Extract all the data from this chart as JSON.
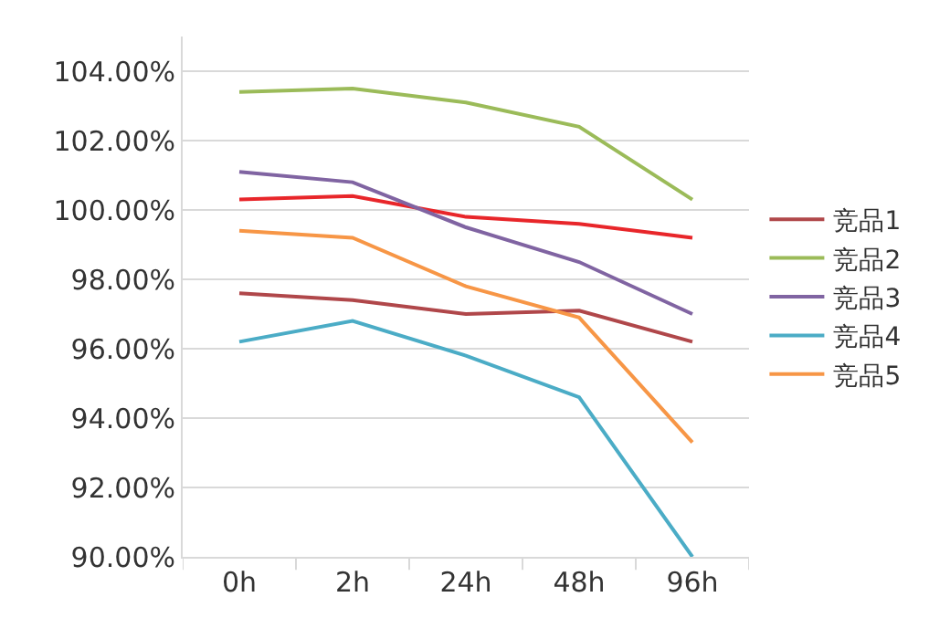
{
  "chart_data": {
    "type": "line",
    "categories": [
      "0h",
      "2h",
      "24h",
      "48h",
      "96h"
    ],
    "series": [
      {
        "color": "#e8262a",
        "values": [
          100.3,
          100.4,
          99.8,
          99.6,
          99.2
        ]
      },
      {
        "name": "竞品1",
        "color": "#b0474a",
        "values": [
          97.6,
          97.4,
          97.0,
          97.1,
          96.2
        ]
      },
      {
        "name": "竞品2",
        "color": "#9bbb59",
        "values": [
          103.4,
          103.5,
          103.1,
          102.4,
          100.3
        ]
      },
      {
        "name": "竞品3",
        "color": "#8064a2",
        "values": [
          101.1,
          100.8,
          99.5,
          98.5,
          97.0
        ]
      },
      {
        "name": "竞品4",
        "color": "#4bacc6",
        "values": [
          96.2,
          96.8,
          95.8,
          94.6,
          90.0
        ]
      },
      {
        "name": "竞品5",
        "color": "#f79646",
        "values": [
          99.4,
          99.2,
          97.8,
          96.9,
          93.3
        ]
      }
    ],
    "ylim": [
      90,
      105
    ],
    "yticks": [
      {
        "value": 90,
        "label": "90.00%"
      },
      {
        "value": 92,
        "label": "92.00%"
      },
      {
        "value": 94,
        "label": "94.00%"
      },
      {
        "value": 96,
        "label": "96.00%"
      },
      {
        "value": 98,
        "label": "98.00%"
      },
      {
        "value": 100,
        "label": "100.00%"
      },
      {
        "value": 102,
        "label": "102.00%"
      },
      {
        "value": 104,
        "label": "104.00%"
      }
    ],
    "grid": "y",
    "legend": "right",
    "marker": "none",
    "line_style": "solid"
  }
}
